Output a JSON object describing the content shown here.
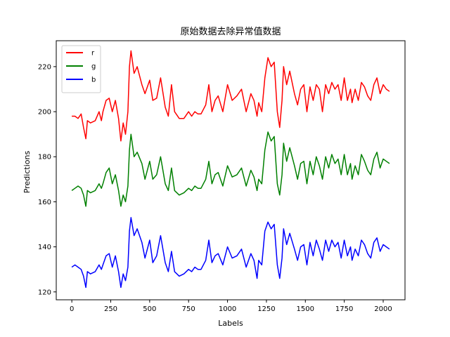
{
  "chart_data": {
    "type": "line",
    "title": "原始数据去除异常值数据",
    "xlabel": "Labels",
    "ylabel": "Predictions",
    "xlim": [
      -100,
      2140
    ],
    "ylim": [
      116.5,
      231.5
    ],
    "xticks": [
      0,
      250,
      500,
      750,
      1000,
      1250,
      1500,
      1750,
      2000
    ],
    "yticks": [
      120,
      140,
      160,
      180,
      200,
      220
    ],
    "grid": false,
    "legend_position": "top-left",
    "series": [
      {
        "name": "r",
        "color": "#ff0000",
        "x": [
          0,
          20,
          40,
          60,
          75,
          90,
          100,
          120,
          150,
          175,
          190,
          200,
          220,
          240,
          260,
          280,
          300,
          315,
          330,
          345,
          360,
          370,
          380,
          400,
          420,
          450,
          470,
          500,
          520,
          545,
          570,
          600,
          620,
          640,
          660,
          690,
          720,
          750,
          770,
          790,
          810,
          830,
          860,
          880,
          900,
          920,
          940,
          970,
          1000,
          1030,
          1060,
          1090,
          1120,
          1150,
          1170,
          1190,
          1200,
          1220,
          1240,
          1260,
          1280,
          1300,
          1320,
          1335,
          1350,
          1360,
          1380,
          1400,
          1430,
          1450,
          1470,
          1490,
          1510,
          1530,
          1550,
          1570,
          1590,
          1610,
          1630,
          1650,
          1670,
          1690,
          1710,
          1730,
          1750,
          1770,
          1790,
          1800,
          1820,
          1840,
          1860,
          1880,
          1900,
          1920,
          1940,
          1960,
          1980,
          2000,
          2020,
          2040
        ],
        "y": [
          198,
          198,
          197,
          199,
          193,
          188,
          196,
          195,
          196,
          200,
          196,
          200,
          205,
          206,
          200,
          205,
          197,
          187,
          195,
          190,
          200,
          220,
          227,
          217,
          220,
          212,
          208,
          214,
          205,
          206,
          215,
          202,
          198,
          212,
          200,
          197,
          197,
          200,
          198,
          200,
          199,
          199,
          203,
          212,
          200,
          205,
          207,
          200,
          212,
          205,
          207,
          210,
          200,
          208,
          205,
          198,
          204,
          200,
          215,
          224,
          220,
          222,
          200,
          193,
          205,
          220,
          212,
          218,
          208,
          203,
          210,
          212,
          200,
          211,
          205,
          212,
          210,
          200,
          212,
          208,
          213,
          210,
          212,
          205,
          215,
          205,
          210,
          204,
          210,
          205,
          213,
          211,
          207,
          205,
          212,
          215,
          208,
          212,
          210,
          209
        ]
      },
      {
        "name": "g",
        "color": "#008000",
        "x": [
          0,
          20,
          40,
          60,
          75,
          90,
          100,
          120,
          150,
          175,
          190,
          200,
          220,
          240,
          260,
          280,
          300,
          315,
          330,
          345,
          360,
          370,
          380,
          400,
          420,
          450,
          470,
          500,
          520,
          545,
          570,
          600,
          620,
          640,
          660,
          690,
          720,
          750,
          770,
          790,
          810,
          830,
          860,
          880,
          900,
          920,
          940,
          970,
          1000,
          1030,
          1060,
          1090,
          1120,
          1150,
          1170,
          1190,
          1200,
          1220,
          1240,
          1260,
          1280,
          1300,
          1320,
          1335,
          1350,
          1360,
          1380,
          1400,
          1430,
          1450,
          1470,
          1490,
          1510,
          1530,
          1550,
          1570,
          1590,
          1610,
          1630,
          1650,
          1670,
          1690,
          1710,
          1730,
          1750,
          1770,
          1790,
          1800,
          1820,
          1840,
          1860,
          1880,
          1900,
          1920,
          1940,
          1960,
          1980,
          2000,
          2020,
          2040
        ],
        "y": [
          165,
          166,
          167,
          166,
          163,
          158,
          165,
          164,
          165,
          168,
          166,
          168,
          173,
          175,
          168,
          172,
          165,
          158,
          163,
          160,
          167,
          183,
          190,
          180,
          182,
          177,
          170,
          178,
          170,
          172,
          180,
          168,
          165,
          175,
          165,
          163,
          164,
          166,
          165,
          167,
          166,
          166,
          170,
          178,
          168,
          172,
          173,
          167,
          176,
          171,
          172,
          175,
          167,
          174,
          171,
          165,
          170,
          168,
          183,
          191,
          187,
          189,
          168,
          163,
          172,
          186,
          178,
          184,
          176,
          170,
          177,
          178,
          168,
          178,
          172,
          180,
          176,
          170,
          180,
          175,
          181,
          177,
          179,
          172,
          181,
          172,
          177,
          170,
          176,
          172,
          181,
          178,
          174,
          172,
          179,
          182,
          175,
          179,
          178,
          177
        ]
      },
      {
        "name": "b",
        "color": "#0000ff",
        "x": [
          0,
          20,
          40,
          60,
          75,
          90,
          100,
          120,
          150,
          175,
          190,
          200,
          220,
          240,
          260,
          280,
          300,
          315,
          330,
          345,
          360,
          370,
          380,
          400,
          420,
          450,
          470,
          500,
          520,
          545,
          570,
          600,
          620,
          640,
          660,
          690,
          720,
          750,
          770,
          790,
          810,
          830,
          860,
          880,
          900,
          920,
          940,
          970,
          1000,
          1030,
          1060,
          1090,
          1120,
          1150,
          1170,
          1190,
          1200,
          1220,
          1240,
          1260,
          1280,
          1300,
          1320,
          1335,
          1350,
          1360,
          1380,
          1400,
          1430,
          1450,
          1470,
          1490,
          1510,
          1530,
          1550,
          1570,
          1590,
          1610,
          1630,
          1650,
          1670,
          1690,
          1710,
          1730,
          1750,
          1770,
          1790,
          1800,
          1820,
          1840,
          1860,
          1880,
          1900,
          1920,
          1940,
          1960,
          1980,
          2000,
          2020,
          2040
        ],
        "y": [
          131,
          132,
          131,
          130,
          127,
          122,
          129,
          128,
          129,
          132,
          130,
          132,
          136,
          137,
          131,
          136,
          129,
          122,
          128,
          125,
          131,
          147,
          153,
          145,
          148,
          142,
          135,
          143,
          133,
          136,
          145,
          133,
          129,
          138,
          129,
          127,
          128,
          130,
          129,
          131,
          130,
          130,
          134,
          143,
          133,
          136,
          137,
          132,
          140,
          135,
          136,
          139,
          131,
          137,
          134,
          126,
          134,
          132,
          147,
          151,
          148,
          150,
          132,
          126,
          135,
          148,
          141,
          146,
          139,
          134,
          140,
          141,
          132,
          142,
          136,
          143,
          139,
          134,
          143,
          138,
          143,
          140,
          142,
          135,
          143,
          136,
          140,
          134,
          139,
          136,
          143,
          141,
          137,
          135,
          142,
          144,
          138,
          141,
          140,
          139
        ]
      }
    ]
  }
}
